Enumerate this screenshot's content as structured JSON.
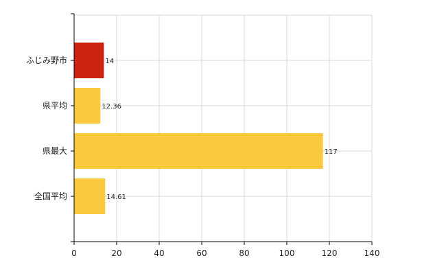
{
  "chart_data": {
    "type": "bar",
    "orientation": "horizontal",
    "categories": [
      "ふじみ野市",
      "県平均",
      "県最大",
      "全国平均"
    ],
    "values": [
      14,
      12.36,
      117,
      14.61
    ],
    "value_labels": [
      "14",
      "12.36",
      "117",
      "14.61"
    ],
    "bar_colors": [
      "#cc2211",
      "#f9c83c",
      "#f9c83c",
      "#f9c83c"
    ],
    "xlim": [
      0,
      140
    ],
    "xticks": [
      0,
      20,
      40,
      60,
      80,
      100,
      120,
      140
    ],
    "xtick_labels": [
      "0",
      "20",
      "40",
      "60",
      "80",
      "100",
      "120",
      "140"
    ],
    "grid": true
  },
  "colors": {
    "highlight": "#cc2211",
    "default_bar": "#f9c83c",
    "grid": "#d8d8d8",
    "axis": "#000000"
  }
}
